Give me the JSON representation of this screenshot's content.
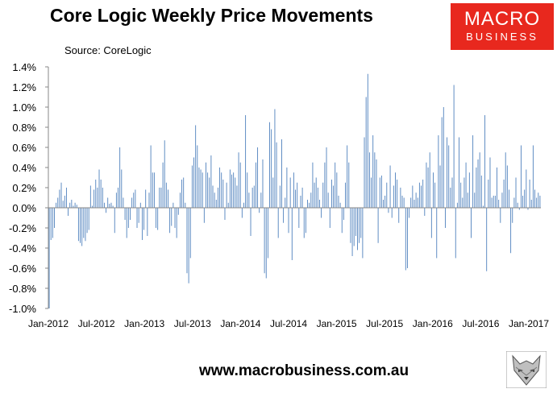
{
  "header": {
    "title": "Core Logic Weekly Price Movements",
    "source": "Source: CoreLogic"
  },
  "logo": {
    "line1": "MACRO",
    "line2": "BUSINESS",
    "mascot_icon": "wolf-head-icon"
  },
  "footer": {
    "website": "www.macrobusiness.com.au"
  },
  "colors": {
    "bar": "#4f81bd",
    "logo_bg": "#e8281e",
    "axis": "#878787"
  },
  "chart_data": {
    "type": "bar",
    "title": "Core Logic Weekly Price Movements",
    "xlabel": "",
    "ylabel": "",
    "ylim": [
      -1.0,
      1.4
    ],
    "yticks": [
      "1.4%",
      "1.2%",
      "1.0%",
      "0.8%",
      "0.6%",
      "0.4%",
      "0.2%",
      "0.0%",
      "-0.2%",
      "-0.4%",
      "-0.6%",
      "-0.8%",
      "-1.0%"
    ],
    "xticks": [
      "Jan-2012",
      "Jul-2012",
      "Jan-2013",
      "Jul-2013",
      "Jan-2014",
      "Jul-2014",
      "Jan-2015",
      "Jul-2015",
      "Jan-2016",
      "Jul-2016",
      "Jan-2017"
    ],
    "grid": false,
    "legend": "none",
    "units": "%",
    "values": [
      -1.0,
      -0.32,
      -0.3,
      -0.2,
      0.05,
      0.1,
      0.18,
      0.25,
      0.07,
      0.12,
      0.2,
      -0.08,
      0.05,
      0.08,
      0.02,
      0.05,
      0.03,
      -0.33,
      -0.35,
      -0.38,
      -0.3,
      -0.33,
      -0.25,
      -0.22,
      0.22,
      0.02,
      0.18,
      0.28,
      0.2,
      0.38,
      0.28,
      0.2,
      0.05,
      -0.05,
      0.1,
      0.04,
      0.05,
      0.02,
      -0.25,
      0.15,
      0.2,
      0.6,
      0.38,
      0.1,
      -0.12,
      -0.3,
      -0.2,
      -0.12,
      0.1,
      0.15,
      0.18,
      -0.2,
      -0.15,
      0.05,
      -0.32,
      -0.22,
      0.18,
      -0.28,
      0.15,
      0.62,
      0.35,
      0.35,
      -0.2,
      -0.22,
      0.2,
      0.2,
      0.45,
      0.67,
      0.25,
      0.18,
      -0.25,
      -0.18,
      0.05,
      -0.2,
      -0.3,
      -0.07,
      0.15,
      0.28,
      0.3,
      0.05,
      -0.65,
      -0.75,
      -0.5,
      0.42,
      0.5,
      0.82,
      0.62,
      0.4,
      0.38,
      0.35,
      -0.15,
      0.45,
      0.35,
      0.3,
      0.52,
      0.22,
      0.15,
      0.08,
      0.2,
      0.4,
      0.35,
      0.28,
      -0.12,
      0.25,
      0.05,
      0.38,
      0.33,
      0.35,
      0.3,
      0.22,
      0.55,
      0.45,
      -0.1,
      0.05,
      0.92,
      0.35,
      0.15,
      -0.28,
      0.2,
      0.22,
      0.45,
      0.6,
      -0.05,
      0.15,
      0.48,
      -0.65,
      -0.7,
      -0.5,
      0.85,
      0.78,
      0.3,
      0.98,
      0.65,
      -0.3,
      0.22,
      0.68,
      -0.15,
      0.1,
      0.4,
      -0.25,
      0.3,
      -0.52,
      0.35,
      0.18,
      0.25,
      -0.2,
      0.12,
      0.2,
      -0.3,
      -0.25,
      0.08,
      0.05,
      0.15,
      0.45,
      0.25,
      0.3,
      0.2,
      0.08,
      -0.1,
      0.25,
      0.45,
      0.6,
      0.15,
      -0.2,
      0.28,
      0.22,
      0.45,
      0.35,
      0.12,
      0.05,
      -0.25,
      -0.12,
      0.25,
      0.62,
      0.45,
      -0.35,
      -0.48,
      -0.38,
      -0.28,
      -0.42,
      -0.35,
      -0.3,
      -0.5,
      0.7,
      1.1,
      1.33,
      0.55,
      0.3,
      0.72,
      0.55,
      0.48,
      -0.35,
      0.3,
      0.32,
      0.08,
      0.12,
      0.25,
      -0.05,
      0.42,
      -0.1,
      0.22,
      0.35,
      0.28,
      -0.15,
      0.2,
      0.12,
      0.1,
      -0.62,
      -0.6,
      -0.1,
      0.1,
      0.22,
      0.08,
      0.15,
      0.1,
      0.25,
      0.22,
      0.28,
      -0.08,
      0.45,
      0.4,
      0.55,
      -0.3,
      0.35,
      0.25,
      -0.5,
      0.72,
      0.42,
      0.9,
      1.0,
      -0.2,
      0.7,
      0.62,
      0.2,
      0.3,
      1.22,
      -0.5,
      0.05,
      0.7,
      0.25,
      0.1,
      0.3,
      0.45,
      0.15,
      0.35,
      -0.3,
      0.72,
      0.15,
      0.4,
      0.48,
      0.55,
      0.32,
      0.02,
      0.92,
      -0.63,
      0.28,
      0.5,
      0.1,
      0.12,
      0.12,
      0.4,
      0.08,
      -0.15,
      0.15,
      0.28,
      0.55,
      0.42,
      0.18,
      -0.45,
      -0.15,
      0.1,
      0.3,
      0.05,
      -0.02,
      0.62,
      0.12,
      0.18,
      0.38,
      -0.02,
      0.28,
      0.08,
      0.62,
      0.18,
      0.1,
      0.15,
      0.12
    ]
  }
}
